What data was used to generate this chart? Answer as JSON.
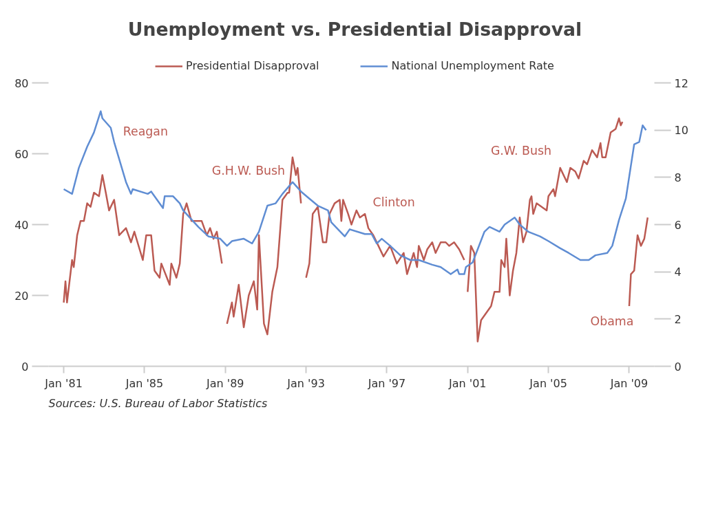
{
  "chart_data": {
    "type": "line",
    "title": "Unemployment vs. Presidential Disapproval",
    "series": [
      {
        "name": "Presidential Disapproval",
        "color": "#bb5a52",
        "x": [
          "1981-01",
          "1981-02",
          "1981-03",
          "1981-06",
          "1981-07",
          "1981-09",
          "1981-11",
          "1982-01",
          "1982-03",
          "1982-05",
          "1982-07",
          "1982-10",
          "1982-12",
          "1983-02",
          "1983-04",
          "1983-07",
          "1983-10",
          "1984-02",
          "1984-05",
          "1984-07",
          "1984-12",
          "1985-02",
          "1985-05",
          "1985-07",
          "1985-10",
          "1985-11",
          "1986-04",
          "1986-05",
          "1986-08",
          "1986-10",
          "1986-12",
          "1987-02",
          "1987-05",
          "1987-09",
          "1987-11",
          "1988-02",
          "1988-04",
          "1988-06",
          "1988-08",
          "1988-11",
          "1988-12",
          "1989-02",
          "1989-05",
          "1989-06",
          "1989-09",
          "1989-12",
          "1990-03",
          "1990-06",
          "1990-08",
          "1990-09",
          "1990-12",
          "1991-02",
          "1991-05",
          "1991-08",
          "1991-11",
          "1992-02",
          "1992-03",
          "1992-05",
          "1992-07",
          "1992-08",
          "1992-10",
          "1992-12",
          "1993-01",
          "1993-03",
          "1993-05",
          "1993-08",
          "1993-11",
          "1994-01",
          "1994-03",
          "1994-06",
          "1994-09",
          "1994-10",
          "1994-11",
          "1995-02",
          "1995-04",
          "1995-07",
          "1995-09",
          "1995-12",
          "1996-02",
          "1996-05",
          "1996-11",
          "1997-03",
          "1997-07",
          "1997-11",
          "1998-01",
          "1998-05",
          "1998-07",
          "1998-08",
          "1998-11",
          "1999-01",
          "1999-04",
          "1999-06",
          "1999-09",
          "1999-12",
          "2000-02",
          "2000-05",
          "2000-08",
          "2000-11",
          "2000-12",
          "2001-01",
          "2001-03",
          "2001-05",
          "2001-07",
          "2001-09",
          "2002-03",
          "2002-05",
          "2002-08",
          "2002-09",
          "2002-11",
          "2002-12",
          "2003-02",
          "2003-04",
          "2003-06",
          "2003-08",
          "2003-10",
          "2003-12",
          "2004-02",
          "2004-03",
          "2004-04",
          "2004-06",
          "2004-12",
          "2005-01",
          "2005-04",
          "2005-05",
          "2005-08",
          "2005-12",
          "2006-02",
          "2006-05",
          "2006-07",
          "2006-10",
          "2006-12",
          "2007-03",
          "2007-06",
          "2007-08",
          "2007-09",
          "2007-11",
          "2008-02",
          "2008-05",
          "2008-07",
          "2008-08",
          "2008-09",
          "2008-12",
          "2009-01",
          "2009-02",
          "2009-04",
          "2009-06",
          "2009-08",
          "2009-10",
          "2009-12"
        ],
        "values": [
          18,
          24,
          18,
          30,
          28,
          37,
          41,
          41,
          46,
          45,
          49,
          48,
          54,
          49,
          44,
          47,
          37,
          39,
          35,
          38,
          30,
          37,
          37,
          27,
          25,
          29,
          23,
          29,
          25,
          29,
          43,
          46,
          41,
          41,
          41,
          37,
          39,
          36,
          38,
          29,
          null,
          12,
          18,
          14,
          23,
          11,
          20,
          24,
          16,
          37,
          12,
          9,
          21,
          28,
          47,
          49,
          49,
          59,
          54,
          56,
          46,
          null,
          25,
          29,
          43,
          45,
          35,
          35,
          43,
          46,
          47,
          41,
          47,
          43,
          40,
          44,
          42,
          43,
          39,
          37,
          31,
          34,
          29,
          32,
          26,
          32,
          28,
          34,
          30,
          33,
          35,
          32,
          35,
          35,
          34,
          35,
          33,
          30,
          null,
          21,
          34,
          32,
          7,
          13,
          17,
          21,
          21,
          30,
          28,
          36,
          20,
          27,
          32,
          42,
          35,
          38,
          47,
          48,
          43,
          46,
          44,
          48,
          50,
          48,
          56,
          52,
          56,
          55,
          53,
          58,
          57,
          61,
          59,
          63,
          59,
          59,
          66,
          67,
          70,
          68,
          69,
          null,
          17,
          26,
          27,
          37,
          34,
          36,
          42
        ]
      },
      {
        "name": "National Unemployment Rate",
        "color": "#5f8dd3",
        "axis": "y2",
        "x": [
          "1981-01",
          "1981-06",
          "1981-10",
          "1982-03",
          "1982-07",
          "1982-11",
          "1982-12",
          "1983-05",
          "1983-07",
          "1984-02",
          "1984-05",
          "1984-06",
          "1985-03",
          "1985-05",
          "1985-12",
          "1986-01",
          "1986-06",
          "1986-10",
          "1986-12",
          "1987-09",
          "1988-03",
          "1988-10",
          "1989-02",
          "1989-05",
          "1989-12",
          "1990-05",
          "1990-09",
          "1991-02",
          "1991-07",
          "1991-11",
          "1992-05",
          "1992-10",
          "1993-03",
          "1993-08",
          "1994-02",
          "1994-04",
          "1994-12",
          "1995-03",
          "1995-12",
          "1996-04",
          "1996-07",
          "1996-10",
          "1997-03",
          "1997-09",
          "1998-03",
          "1998-08",
          "1999-04",
          "1999-09",
          "2000-03",
          "2000-07",
          "2000-08",
          "2000-11",
          "2000-12",
          "2001-04",
          "2001-11",
          "2002-02",
          "2002-08",
          "2002-11",
          "2003-05",
          "2003-08",
          "2004-01",
          "2004-08",
          "2005-01",
          "2005-08",
          "2006-01",
          "2006-08",
          "2007-01",
          "2007-05",
          "2007-12",
          "2008-03",
          "2008-07",
          "2008-11",
          "2009-04",
          "2009-07",
          "2009-09",
          "2009-11"
        ],
        "values": [
          7.5,
          7.3,
          8.4,
          9.3,
          9.9,
          10.8,
          10.5,
          10.1,
          9.5,
          7.8,
          7.3,
          7.5,
          7.3,
          7.4,
          6.7,
          7.2,
          7.2,
          6.9,
          6.6,
          5.9,
          5.5,
          5.4,
          5.1,
          5.3,
          5.4,
          5.2,
          5.7,
          6.8,
          6.9,
          7.3,
          7.8,
          7.4,
          7.1,
          6.8,
          6.6,
          6.1,
          5.5,
          5.8,
          5.6,
          5.6,
          5.2,
          5.4,
          5.1,
          4.7,
          4.5,
          4.5,
          4.3,
          4.2,
          3.9,
          4.1,
          3.9,
          3.9,
          4.2,
          4.4,
          5.7,
          5.9,
          5.7,
          6.0,
          6.3,
          6.0,
          5.7,
          5.5,
          5.3,
          5.0,
          4.8,
          4.5,
          4.5,
          4.7,
          4.8,
          5.1,
          6.2,
          7.1,
          9.4,
          9.5,
          10.2,
          10.0
        ]
      }
    ],
    "xlim": [
      "1980-04",
      "2010-04"
    ],
    "xticks": [
      {
        "value": "1981-01",
        "label": "Jan '81"
      },
      {
        "value": "1985-01",
        "label": "Jan '85"
      },
      {
        "value": "1989-01",
        "label": "Jan '89"
      },
      {
        "value": "1993-01",
        "label": "Jan '93"
      },
      {
        "value": "1997-01",
        "label": "Jan '97"
      },
      {
        "value": "2001-01",
        "label": "Jan '01"
      },
      {
        "value": "2005-01",
        "label": "Jan '05"
      },
      {
        "value": "2009-01",
        "label": "Jan '09"
      }
    ],
    "ylim": [
      0,
      80
    ],
    "yticks": [
      0,
      20,
      40,
      60,
      80
    ],
    "y2lim": [
      0,
      12
    ],
    "y2ticks": [
      0,
      2,
      4,
      6,
      8,
      10,
      12
    ],
    "grid": false,
    "legend": "top",
    "annotations": [
      "Reagan",
      "G.H.W. Bush",
      "Clinton",
      "G.W. Bush",
      "Obama",
      "Sources: U.S. Bureau of Labor Statistics"
    ]
  }
}
